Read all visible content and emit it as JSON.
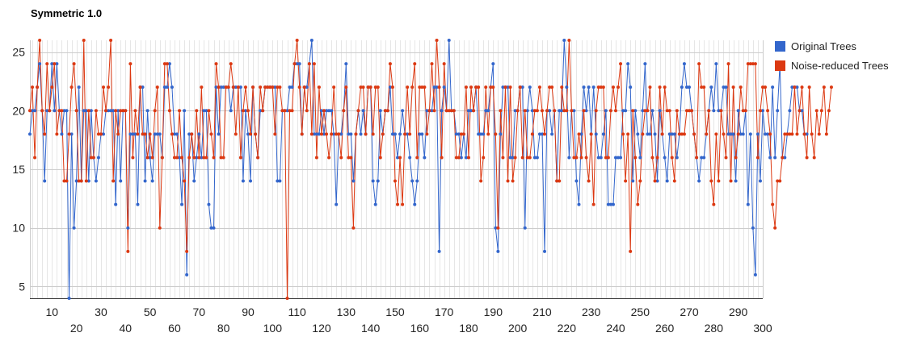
{
  "chart_data": {
    "type": "line",
    "title": "Symmetric 1.0",
    "xlabel": "",
    "ylabel": "",
    "xlim": [
      1,
      300
    ],
    "ylim": [
      4,
      26
    ],
    "yticks": [
      5,
      10,
      15,
      20,
      25
    ],
    "xticks_upper": [
      10,
      30,
      50,
      70,
      90,
      110,
      130,
      150,
      170,
      190,
      210,
      230,
      250,
      270,
      290
    ],
    "xticks_lower": [
      20,
      40,
      60,
      80,
      100,
      120,
      140,
      160,
      180,
      200,
      220,
      240,
      260,
      280,
      300
    ],
    "legend_position": "right",
    "grid": true,
    "series": [
      {
        "name": "Original Trees",
        "color": "#3366cc",
        "values": [
          18,
          20,
          20,
          22,
          24,
          20,
          14,
          20,
          20,
          24,
          20,
          24,
          20,
          18,
          20,
          20,
          4,
          18,
          10,
          14,
          22,
          14,
          20,
          20,
          14,
          20,
          16,
          14,
          16,
          18,
          18,
          20,
          20,
          20,
          20,
          12,
          20,
          14,
          20,
          20,
          10,
          18,
          18,
          18,
          12,
          22,
          22,
          14,
          20,
          16,
          14,
          18,
          18,
          18,
          16,
          22,
          22,
          24,
          22,
          18,
          18,
          16,
          12,
          20,
          6,
          18,
          18,
          14,
          16,
          18,
          16,
          20,
          20,
          12,
          10,
          10,
          22,
          18,
          22,
          22,
          22,
          22,
          20,
          22,
          22,
          22,
          22,
          14,
          20,
          18,
          14,
          22,
          18,
          16,
          20,
          20,
          22,
          22,
          22,
          22,
          22,
          14,
          14,
          20,
          20,
          20,
          22,
          22,
          24,
          24,
          24,
          18,
          22,
          22,
          24,
          26,
          18,
          18,
          18,
          20,
          18,
          20,
          20,
          20,
          18,
          12,
          18,
          18,
          20,
          24,
          18,
          18,
          14,
          18,
          20,
          18,
          20,
          18,
          22,
          22,
          14,
          12,
          14,
          20,
          18,
          20,
          20,
          22,
          18,
          18,
          16,
          18,
          20,
          18,
          18,
          16,
          14,
          12,
          14,
          18,
          18,
          16,
          20,
          20,
          20,
          22,
          22,
          8,
          20,
          22,
          20,
          26,
          20,
          20,
          18,
          18,
          16,
          18,
          16,
          20,
          20,
          20,
          22,
          18,
          18,
          18,
          20,
          20,
          22,
          24,
          10,
          8,
          18,
          22,
          22,
          22,
          16,
          16,
          20,
          20,
          22,
          22,
          10,
          20,
          22,
          20,
          16,
          16,
          18,
          18,
          8,
          20,
          20,
          18,
          20,
          14,
          20,
          20,
          26,
          22,
          16,
          20,
          20,
          14,
          12,
          18,
          22,
          20,
          22,
          18,
          22,
          18,
          16,
          16,
          18,
          20,
          12,
          12,
          12,
          16,
          16,
          16,
          20,
          20,
          24,
          22,
          14,
          20,
          18,
          16,
          20,
          24,
          18,
          18,
          20,
          18,
          14,
          20,
          18,
          16,
          14,
          18,
          18,
          18,
          16,
          18,
          22,
          24,
          22,
          22,
          20,
          18,
          16,
          14,
          16,
          16,
          18,
          20,
          22,
          20,
          24,
          20,
          20,
          22,
          22,
          18,
          18,
          18,
          14,
          20,
          18,
          18,
          20,
          12,
          18,
          10,
          6,
          18,
          14,
          20,
          18,
          18,
          16,
          22,
          16,
          20,
          24,
          16,
          16,
          18,
          20,
          22,
          22,
          22,
          20,
          20,
          18,
          18
        ]
      },
      {
        "name": "Noise-reduced Trees",
        "color": "#dc3912",
        "values": [
          20,
          22,
          16,
          22,
          26,
          20,
          18,
          24,
          20,
          22,
          24,
          18,
          20,
          20,
          14,
          14,
          18,
          22,
          24,
          20,
          14,
          14,
          26,
          14,
          20,
          16,
          16,
          20,
          18,
          18,
          22,
          20,
          22,
          26,
          14,
          20,
          18,
          20,
          20,
          20,
          8,
          24,
          16,
          20,
          18,
          22,
          18,
          18,
          16,
          18,
          16,
          20,
          22,
          10,
          16,
          24,
          24,
          20,
          18,
          16,
          16,
          20,
          16,
          14,
          8,
          16,
          18,
          16,
          20,
          16,
          22,
          16,
          16,
          20,
          18,
          16,
          24,
          22,
          16,
          16,
          22,
          22,
          24,
          22,
          18,
          22,
          16,
          20,
          22,
          20,
          18,
          22,
          18,
          16,
          22,
          20,
          22,
          22,
          22,
          22,
          18,
          22,
          22,
          20,
          20,
          4,
          20,
          20,
          24,
          26,
          22,
          18,
          22,
          20,
          24,
          18,
          24,
          16,
          22,
          18,
          20,
          18,
          16,
          18,
          22,
          18,
          18,
          16,
          20,
          22,
          16,
          16,
          10,
          18,
          20,
          22,
          22,
          18,
          22,
          22,
          18,
          22,
          22,
          16,
          18,
          20,
          20,
          24,
          22,
          14,
          12,
          16,
          12,
          18,
          22,
          18,
          22,
          24,
          16,
          22,
          22,
          22,
          18,
          20,
          24,
          20,
          26,
          22,
          16,
          24,
          20,
          20,
          20,
          20,
          16,
          16,
          18,
          18,
          22,
          16,
          22,
          20,
          22,
          22,
          14,
          16,
          22,
          18,
          22,
          22,
          18,
          10,
          20,
          16,
          22,
          14,
          22,
          14,
          16,
          20,
          22,
          16,
          20,
          16,
          16,
          18,
          20,
          20,
          22,
          20,
          18,
          20,
          22,
          22,
          20,
          14,
          14,
          22,
          20,
          20,
          26,
          20,
          16,
          16,
          18,
          16,
          20,
          16,
          14,
          18,
          12,
          20,
          22,
          22,
          22,
          16,
          16,
          20,
          22,
          20,
          22,
          24,
          18,
          14,
          18,
          8,
          20,
          16,
          12,
          14,
          18,
          20,
          20,
          22,
          16,
          14,
          16,
          22,
          18,
          22,
          20,
          20,
          16,
          14,
          20,
          18,
          18,
          18,
          20,
          20,
          20,
          18,
          16,
          24,
          22,
          22,
          18,
          20,
          14,
          12,
          18,
          14,
          20,
          18,
          16,
          24,
          14,
          22,
          16,
          18,
          22,
          20,
          20,
          24,
          24,
          24,
          24,
          16,
          20,
          22,
          22,
          20,
          18,
          12,
          10,
          14,
          14,
          16,
          18,
          18,
          18,
          18,
          22,
          18,
          20,
          22,
          18,
          16,
          22,
          18,
          16,
          20,
          18,
          20,
          22,
          18,
          20,
          22
        ]
      }
    ]
  }
}
